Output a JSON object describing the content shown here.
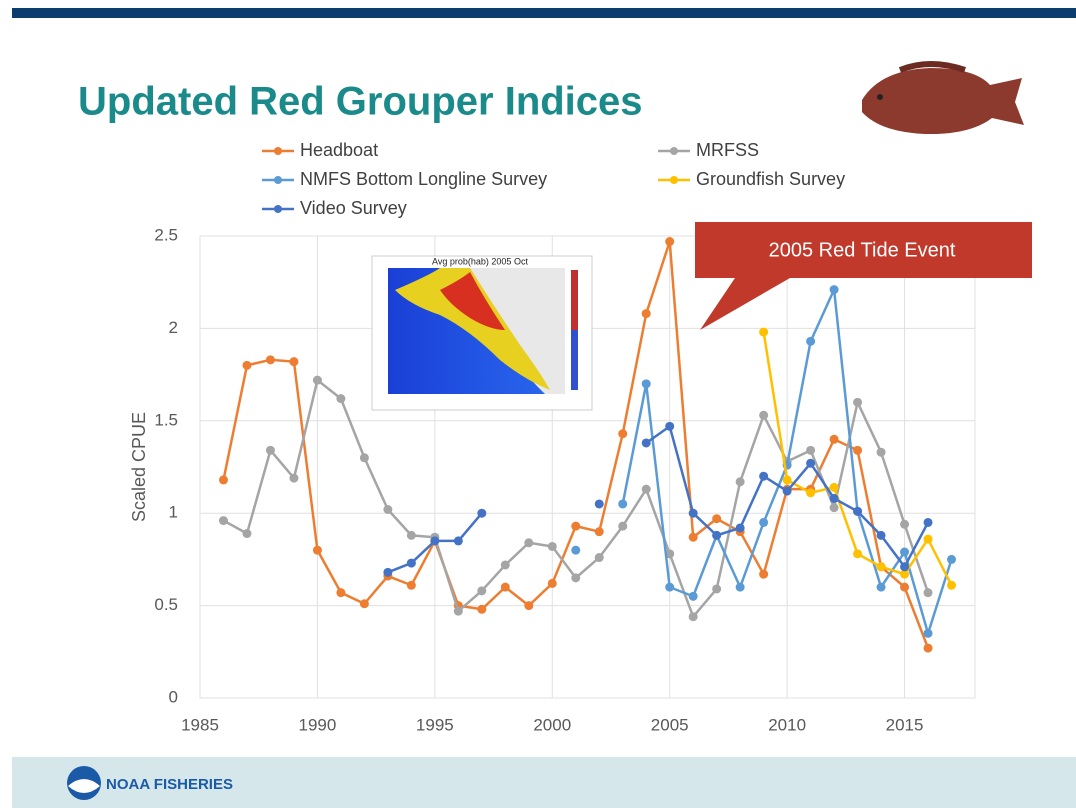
{
  "chart_data": {
    "type": "line",
    "title": "Updated Red Grouper Indices",
    "y_label": "Scaled CPUE",
    "annotation": "2005 Red Tide Event",
    "inset_title": "Avg prob(hab) 2005 Oct",
    "x": [
      1986,
      1987,
      1988,
      1989,
      1990,
      1991,
      1992,
      1993,
      1994,
      1995,
      1996,
      1997,
      1998,
      1999,
      2000,
      2001,
      2002,
      2003,
      2004,
      2005,
      2006,
      2007,
      2008,
      2009,
      2010,
      2011,
      2012,
      2013,
      2014,
      2015,
      2016,
      2017
    ],
    "series": [
      {
        "name": "Headboat",
        "color": "#ed7d31",
        "values": [
          1.18,
          1.8,
          1.83,
          1.82,
          0.8,
          0.57,
          0.51,
          0.66,
          0.61,
          0.85,
          0.5,
          0.48,
          0.6,
          0.5,
          0.62,
          0.93,
          0.9,
          1.43,
          2.08,
          2.47,
          0.87,
          0.97,
          0.9,
          0.67,
          1.13,
          1.13,
          1.4,
          1.34,
          0.71,
          0.6,
          0.27,
          null
        ]
      },
      {
        "name": "MRFSS",
        "color": "#a5a5a5",
        "values": [
          0.96,
          0.89,
          1.34,
          1.19,
          1.72,
          1.62,
          1.3,
          1.02,
          0.88,
          0.87,
          0.47,
          0.58,
          0.72,
          0.84,
          0.82,
          0.65,
          0.76,
          0.93,
          1.13,
          0.78,
          0.44,
          0.59,
          1.17,
          1.53,
          1.28,
          1.34,
          1.03,
          1.6,
          1.33,
          0.94,
          0.57,
          null
        ]
      },
      {
        "name": "NMFS Bottom Longline Survey",
        "color": "#5b9bd5",
        "values": [
          null,
          null,
          null,
          null,
          null,
          null,
          null,
          null,
          null,
          null,
          null,
          null,
          null,
          null,
          null,
          0.8,
          null,
          1.05,
          1.7,
          0.6,
          0.55,
          0.88,
          0.6,
          0.95,
          1.26,
          1.93,
          2.21,
          1.01,
          0.6,
          0.79,
          0.35,
          0.75
        ]
      },
      {
        "name": "Groundfish Survey",
        "color": "#ffc000",
        "values": [
          null,
          null,
          null,
          null,
          null,
          null,
          null,
          null,
          null,
          null,
          null,
          null,
          null,
          null,
          null,
          null,
          null,
          null,
          null,
          null,
          null,
          null,
          null,
          1.98,
          1.18,
          1.11,
          1.14,
          0.78,
          0.71,
          0.67,
          0.86,
          0.61
        ]
      },
      {
        "name": "Video Survey",
        "color": "#4472c4",
        "values": [
          null,
          null,
          null,
          null,
          null,
          null,
          null,
          0.68,
          0.73,
          0.85,
          0.85,
          1.0,
          null,
          null,
          null,
          null,
          1.05,
          null,
          1.38,
          1.47,
          1.0,
          0.88,
          0.92,
          1.2,
          1.12,
          1.27,
          1.08,
          1.01,
          0.88,
          0.71,
          0.95,
          null
        ]
      }
    ],
    "xlim": [
      1985,
      2018
    ],
    "xticks": [
      1985,
      1990,
      1995,
      2000,
      2005,
      2010,
      2015
    ],
    "ylim": [
      0,
      2.5
    ],
    "yticks": [
      0,
      0.5,
      1,
      1.5,
      2,
      2.5
    ],
    "grid": true
  },
  "footer": {
    "logo_text": "NOAA FISHERIES"
  }
}
